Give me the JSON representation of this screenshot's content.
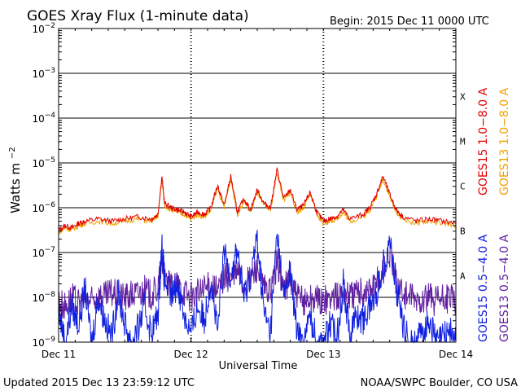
{
  "header": {
    "title": "GOES Xray Flux (1-minute data)",
    "begin": "Begin:  2015 Dec 11 0000 UTC"
  },
  "footer": {
    "updated": "Updated 2015 Dec 13 23:59:12 UTC",
    "credit": "NOAA/SWPC Boulder, CO USA"
  },
  "colors": {
    "goes15_long": "#e00000",
    "goes13_long": "#f0a000",
    "goes15_short": "#1020e0",
    "goes13_short": "#6020a0",
    "grid": "#000000"
  },
  "chart_data": {
    "type": "line",
    "title": "GOES Xray Flux (1-minute data)",
    "xlabel": "Universal Time",
    "ylabel": "Watts m^-2",
    "ylabel_base": "Watts m",
    "ylabel_exp": "−2",
    "xlim_days": [
      0,
      3
    ],
    "x_ticks": [
      {
        "day": 0,
        "label": "Dec 11"
      },
      {
        "day": 1,
        "label": "Dec 12"
      },
      {
        "day": 2,
        "label": "Dec 13"
      },
      {
        "day": 3,
        "label": "Dec 14"
      }
    ],
    "ylim_log10": [
      -9,
      -2
    ],
    "y_ticks": [
      {
        "exp": -2,
        "base": "10",
        "sup": "−2"
      },
      {
        "exp": -3,
        "base": "10",
        "sup": "−3"
      },
      {
        "exp": -4,
        "base": "10",
        "sup": "−4"
      },
      {
        "exp": -5,
        "base": "10",
        "sup": "−5"
      },
      {
        "exp": -6,
        "base": "10",
        "sup": "−6"
      },
      {
        "exp": -7,
        "base": "10",
        "sup": "−7"
      },
      {
        "exp": -8,
        "base": "10",
        "sup": "−8"
      },
      {
        "exp": -9,
        "base": "10",
        "sup": "−9"
      }
    ],
    "flare_classes": [
      {
        "label": "X",
        "exp": -3.5
      },
      {
        "label": "M",
        "exp": -4.5
      },
      {
        "label": "C",
        "exp": -5.5
      },
      {
        "label": "B",
        "exp": -6.5
      },
      {
        "label": "A",
        "exp": -7.5
      }
    ],
    "legend": [
      {
        "label": "GOES15 1.0−8.0 A",
        "color": "#e00000"
      },
      {
        "label": "GOES13 1.0−8.0 A",
        "color": "#f0a000"
      },
      {
        "label": "GOES15 0.5−4.0 A",
        "color": "#1020e0"
      },
      {
        "label": "GOES13 0.5−4.0 A",
        "color": "#6020a0"
      }
    ],
    "series": [
      {
        "name": "GOES15 1.0-8.0 A",
        "color": "#e00000",
        "x_days": [
          0.0,
          0.05,
          0.1,
          0.15,
          0.2,
          0.3,
          0.4,
          0.5,
          0.6,
          0.7,
          0.75,
          0.78,
          0.8,
          0.85,
          0.9,
          0.95,
          1.0,
          1.05,
          1.1,
          1.15,
          1.2,
          1.25,
          1.3,
          1.35,
          1.4,
          1.45,
          1.5,
          1.55,
          1.6,
          1.65,
          1.7,
          1.75,
          1.8,
          1.85,
          1.9,
          1.95,
          2.0,
          2.05,
          2.1,
          2.15,
          2.2,
          2.3,
          2.35,
          2.4,
          2.45,
          2.5,
          2.55,
          2.6,
          2.7,
          2.8,
          2.9,
          3.0
        ],
        "log10_flux": [
          -6.5,
          -6.4,
          -6.45,
          -6.35,
          -6.3,
          -6.25,
          -6.3,
          -6.25,
          -6.2,
          -6.25,
          -6.15,
          -5.3,
          -5.9,
          -6.0,
          -6.05,
          -6.1,
          -6.2,
          -6.1,
          -6.15,
          -6.0,
          -5.5,
          -5.95,
          -5.3,
          -6.1,
          -5.8,
          -6.05,
          -5.6,
          -5.9,
          -6.0,
          -5.15,
          -5.8,
          -5.6,
          -6.05,
          -5.95,
          -5.65,
          -6.1,
          -6.3,
          -6.25,
          -6.2,
          -6.05,
          -6.25,
          -6.15,
          -6.0,
          -5.7,
          -5.3,
          -5.7,
          -6.05,
          -6.2,
          -6.3,
          -6.25,
          -6.3,
          -6.35
        ]
      },
      {
        "name": "GOES13 1.0-8.0 A",
        "color": "#f0a000",
        "x_days": [
          0.0,
          0.05,
          0.1,
          0.15,
          0.2,
          0.3,
          0.4,
          0.5,
          0.6,
          0.7,
          0.75,
          0.78,
          0.8,
          0.85,
          0.9,
          0.95,
          1.0,
          1.05,
          1.1,
          1.15,
          1.2,
          1.25,
          1.3,
          1.35,
          1.4,
          1.45,
          1.5,
          1.55,
          1.6,
          1.65,
          1.7,
          1.75,
          1.8,
          1.85,
          1.9,
          1.95,
          2.0,
          2.05,
          2.1,
          2.15,
          2.2,
          2.3,
          2.35,
          2.4,
          2.45,
          2.5,
          2.55,
          2.6,
          2.7,
          2.8,
          2.9,
          3.0
        ],
        "log10_flux": [
          -6.55,
          -6.45,
          -6.5,
          -6.4,
          -6.35,
          -6.3,
          -6.35,
          -6.3,
          -6.25,
          -6.3,
          -6.2,
          -5.35,
          -5.95,
          -6.05,
          -6.1,
          -6.15,
          -6.25,
          -6.15,
          -6.2,
          -6.05,
          -5.55,
          -6.0,
          -5.35,
          -6.15,
          -5.85,
          -6.1,
          -5.65,
          -5.95,
          -6.05,
          -5.2,
          -5.85,
          -5.65,
          -6.1,
          -6.0,
          -5.7,
          -6.15,
          -6.35,
          -6.3,
          -6.25,
          -6.1,
          -6.3,
          -6.2,
          -6.05,
          -5.75,
          -5.35,
          -5.75,
          -6.1,
          -6.25,
          -6.35,
          -6.3,
          -6.35,
          -6.4
        ]
      },
      {
        "name": "GOES15 0.5-4.0 A",
        "color": "#1020e0",
        "x_days": [
          0.0,
          0.05,
          0.1,
          0.15,
          0.2,
          0.25,
          0.3,
          0.35,
          0.4,
          0.45,
          0.5,
          0.55,
          0.6,
          0.65,
          0.7,
          0.75,
          0.78,
          0.8,
          0.85,
          0.9,
          0.95,
          1.0,
          1.05,
          1.1,
          1.15,
          1.2,
          1.25,
          1.3,
          1.35,
          1.4,
          1.45,
          1.5,
          1.55,
          1.6,
          1.65,
          1.7,
          1.75,
          1.8,
          1.85,
          1.9,
          1.95,
          2.0,
          2.05,
          2.1,
          2.15,
          2.2,
          2.25,
          2.3,
          2.35,
          2.4,
          2.45,
          2.5,
          2.55,
          2.6,
          2.65,
          2.7,
          2.75,
          2.8,
          2.85,
          2.9,
          2.95,
          3.0
        ],
        "log10_flux": [
          -8.3,
          -9.0,
          -8.2,
          -8.6,
          -7.8,
          -9.0,
          -8.0,
          -8.5,
          -8.9,
          -7.9,
          -8.6,
          -9.0,
          -8.7,
          -8.2,
          -8.8,
          -8.4,
          -6.8,
          -7.6,
          -8.0,
          -7.7,
          -8.4,
          -8.8,
          -8.2,
          -8.5,
          -7.6,
          -8.8,
          -7.0,
          -7.5,
          -6.9,
          -8.0,
          -7.5,
          -6.7,
          -8.3,
          -8.8,
          -6.5,
          -8.0,
          -7.4,
          -8.8,
          -9.0,
          -8.4,
          -9.0,
          -9.0,
          -8.6,
          -8.9,
          -7.7,
          -8.8,
          -8.4,
          -8.5,
          -8.2,
          -7.9,
          -7.3,
          -6.7,
          -7.8,
          -8.6,
          -9.0,
          -9.0,
          -8.8,
          -8.5,
          -9.0,
          -8.9,
          -8.7,
          -9.0
        ]
      },
      {
        "name": "GOES13 0.5-4.0 A",
        "color": "#6020a0",
        "x_days": [
          0.0,
          0.05,
          0.1,
          0.15,
          0.2,
          0.25,
          0.3,
          0.35,
          0.4,
          0.45,
          0.5,
          0.55,
          0.6,
          0.65,
          0.7,
          0.75,
          0.78,
          0.8,
          0.85,
          0.9,
          0.95,
          1.0,
          1.05,
          1.1,
          1.15,
          1.2,
          1.25,
          1.3,
          1.35,
          1.4,
          1.45,
          1.5,
          1.55,
          1.6,
          1.65,
          1.7,
          1.75,
          1.8,
          1.85,
          1.9,
          1.95,
          2.0,
          2.05,
          2.1,
          2.15,
          2.2,
          2.25,
          2.3,
          2.35,
          2.4,
          2.45,
          2.5,
          2.55,
          2.6,
          2.65,
          2.7,
          2.75,
          2.8,
          2.85,
          2.9,
          2.95,
          3.0
        ],
        "log10_flux": [
          -8.1,
          -8.2,
          -8.0,
          -8.15,
          -8.05,
          -8.1,
          -7.95,
          -8.0,
          -7.9,
          -7.95,
          -8.0,
          -7.95,
          -7.9,
          -7.85,
          -7.95,
          -7.8,
          -7.2,
          -7.6,
          -7.8,
          -7.75,
          -7.85,
          -8.0,
          -7.9,
          -7.85,
          -7.7,
          -7.9,
          -7.5,
          -7.6,
          -7.4,
          -7.75,
          -7.6,
          -7.3,
          -7.8,
          -7.9,
          -7.2,
          -7.8,
          -7.6,
          -8.0,
          -8.1,
          -8.0,
          -8.05,
          -8.1,
          -8.0,
          -8.0,
          -7.85,
          -7.95,
          -7.9,
          -7.9,
          -7.8,
          -7.7,
          -7.4,
          -7.0,
          -7.6,
          -7.9,
          -8.0,
          -8.1,
          -8.05,
          -8.0,
          -8.1,
          -8.05,
          -8.0,
          -8.1
        ]
      }
    ]
  }
}
